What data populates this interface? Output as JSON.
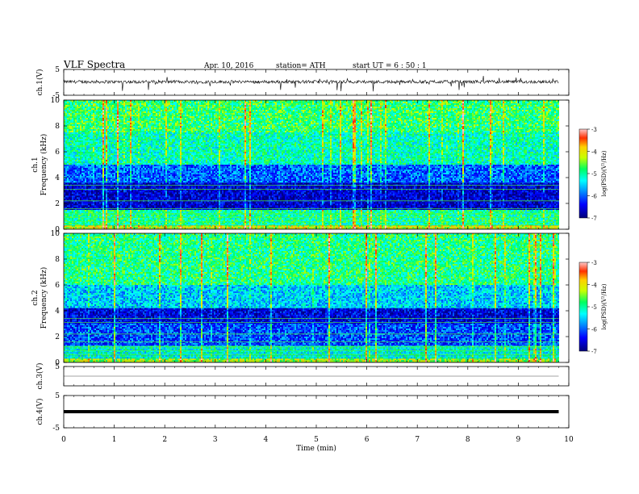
{
  "header": {
    "title": "VLF  Spectra",
    "date": "Apr. 10, 2016",
    "station": "station= ATH",
    "start": "start  UT  =   6  : 50 : 1"
  },
  "chart_data": [
    {
      "type": "line",
      "panel": "ch1-waveform",
      "ylabel": "ch.1(V)",
      "ylim": [
        -5,
        5
      ],
      "yticks": [
        "5",
        "-5"
      ],
      "x_range_min": [
        0,
        9.8
      ],
      "baseline_v": 0.2,
      "color": "#000000"
    },
    {
      "type": "heatmap",
      "panel": "ch1-spectrogram",
      "ylabel_channel": "ch.1",
      "ylabel": "Frequency  (kHz)",
      "ylim": [
        0,
        10
      ],
      "yticks": [
        "0",
        "2",
        "4",
        "6",
        "8",
        "10"
      ],
      "x_range_min": [
        0,
        9.8
      ],
      "colorbar": {
        "label": "log(PSD)(V²/Hz)",
        "range": [
          -7,
          -3
        ],
        "ticks": [
          "-3",
          "-4",
          "-5",
          "-6",
          "-7"
        ]
      },
      "bands_khz": [
        {
          "from": 0.0,
          "to": 0.3,
          "level": -4.2
        },
        {
          "from": 0.3,
          "to": 1.5,
          "level": -5.0
        },
        {
          "from": 1.5,
          "to": 3.6,
          "level": -6.6
        },
        {
          "from": 3.6,
          "to": 5.0,
          "level": -6.0
        },
        {
          "from": 5.0,
          "to": 7.5,
          "level": -5.1
        },
        {
          "from": 7.5,
          "to": 10.0,
          "level": -4.8
        }
      ]
    },
    {
      "type": "heatmap",
      "panel": "ch2-spectrogram",
      "ylabel_channel": "ch.2",
      "ylabel": "Frequency  (kHz)",
      "ylim": [
        0,
        10
      ],
      "yticks": [
        "0",
        "2",
        "4",
        "6",
        "8",
        "10"
      ],
      "x_range_min": [
        0,
        9.8
      ],
      "colorbar": {
        "label": "log(PSD)(V²/Hz)",
        "range": [
          -7,
          -3
        ],
        "ticks": [
          "-3",
          "-4",
          "-5",
          "-6",
          "-7"
        ]
      },
      "bands_khz": [
        {
          "from": 0.0,
          "to": 0.3,
          "level": -4.4
        },
        {
          "from": 0.3,
          "to": 1.3,
          "level": -5.2
        },
        {
          "from": 1.3,
          "to": 3.0,
          "level": -6.1
        },
        {
          "from": 3.0,
          "to": 4.2,
          "level": -6.5
        },
        {
          "from": 4.2,
          "to": 6.0,
          "level": -5.5
        },
        {
          "from": 6.0,
          "to": 10.0,
          "level": -4.9
        }
      ]
    },
    {
      "type": "line",
      "panel": "ch3-waveform",
      "ylabel": "ch.3(V)",
      "ylim": [
        -5,
        5
      ],
      "yticks": [
        "5"
      ],
      "x_range_min": [
        0,
        9.8
      ],
      "baseline_v": 0,
      "color": "#888888"
    },
    {
      "type": "line",
      "panel": "ch4-waveform",
      "ylabel": "ch.4(V)",
      "ylim": [
        -5,
        5
      ],
      "yticks": [
        "5",
        "-5"
      ],
      "x_range_min": [
        0,
        9.8
      ],
      "baseline_v": 0,
      "color": "#000000"
    },
    {
      "type": "axis",
      "xlabel": "Time  (min)",
      "xlim": [
        0,
        10
      ],
      "xticks": [
        "0",
        "1",
        "2",
        "3",
        "4",
        "5",
        "6",
        "7",
        "8",
        "9",
        "10"
      ]
    }
  ]
}
